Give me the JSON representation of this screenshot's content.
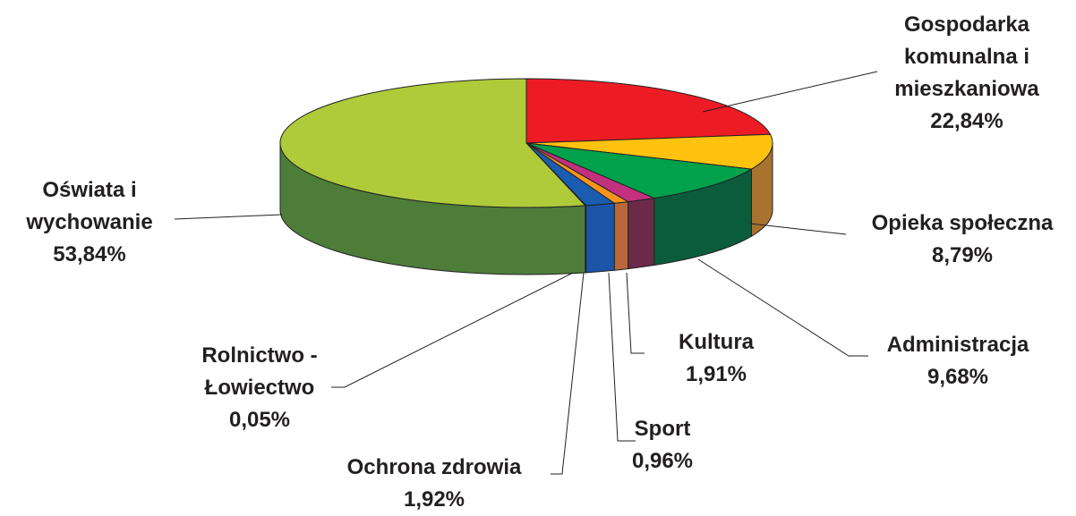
{
  "chart_data": {
    "type": "pie",
    "categories": [
      "Gospodarka komunalna i mieszkaniowa",
      "Opieka społeczna",
      "Administracja",
      "Kultura",
      "Sport",
      "Ochrona zdrowia",
      "Rolnictwo - Łowiectwo",
      "Oświata i wychowanie"
    ],
    "values": [
      22.84,
      8.79,
      9.68,
      1.91,
      0.96,
      1.92,
      0.05,
      53.84
    ],
    "value_labels": [
      "22,84%",
      "8,79%",
      "9,68%",
      "1,91%",
      "0,96%",
      "1,92%",
      "0,05%",
      "53,84%"
    ],
    "colors": [
      "#ed1c24",
      "#ffc20e",
      "#00a14b",
      "#c2307e",
      "#f7941d",
      "#1a5cb0",
      "#5a2d82",
      "#afcb3a"
    ],
    "side_colors": [
      "#a51217",
      "#a8732f",
      "#0b5c3c",
      "#6b2a48",
      "#b8683a",
      "#1c54a8",
      "#3d1f5a",
      "#4e7d3a"
    ]
  }
}
